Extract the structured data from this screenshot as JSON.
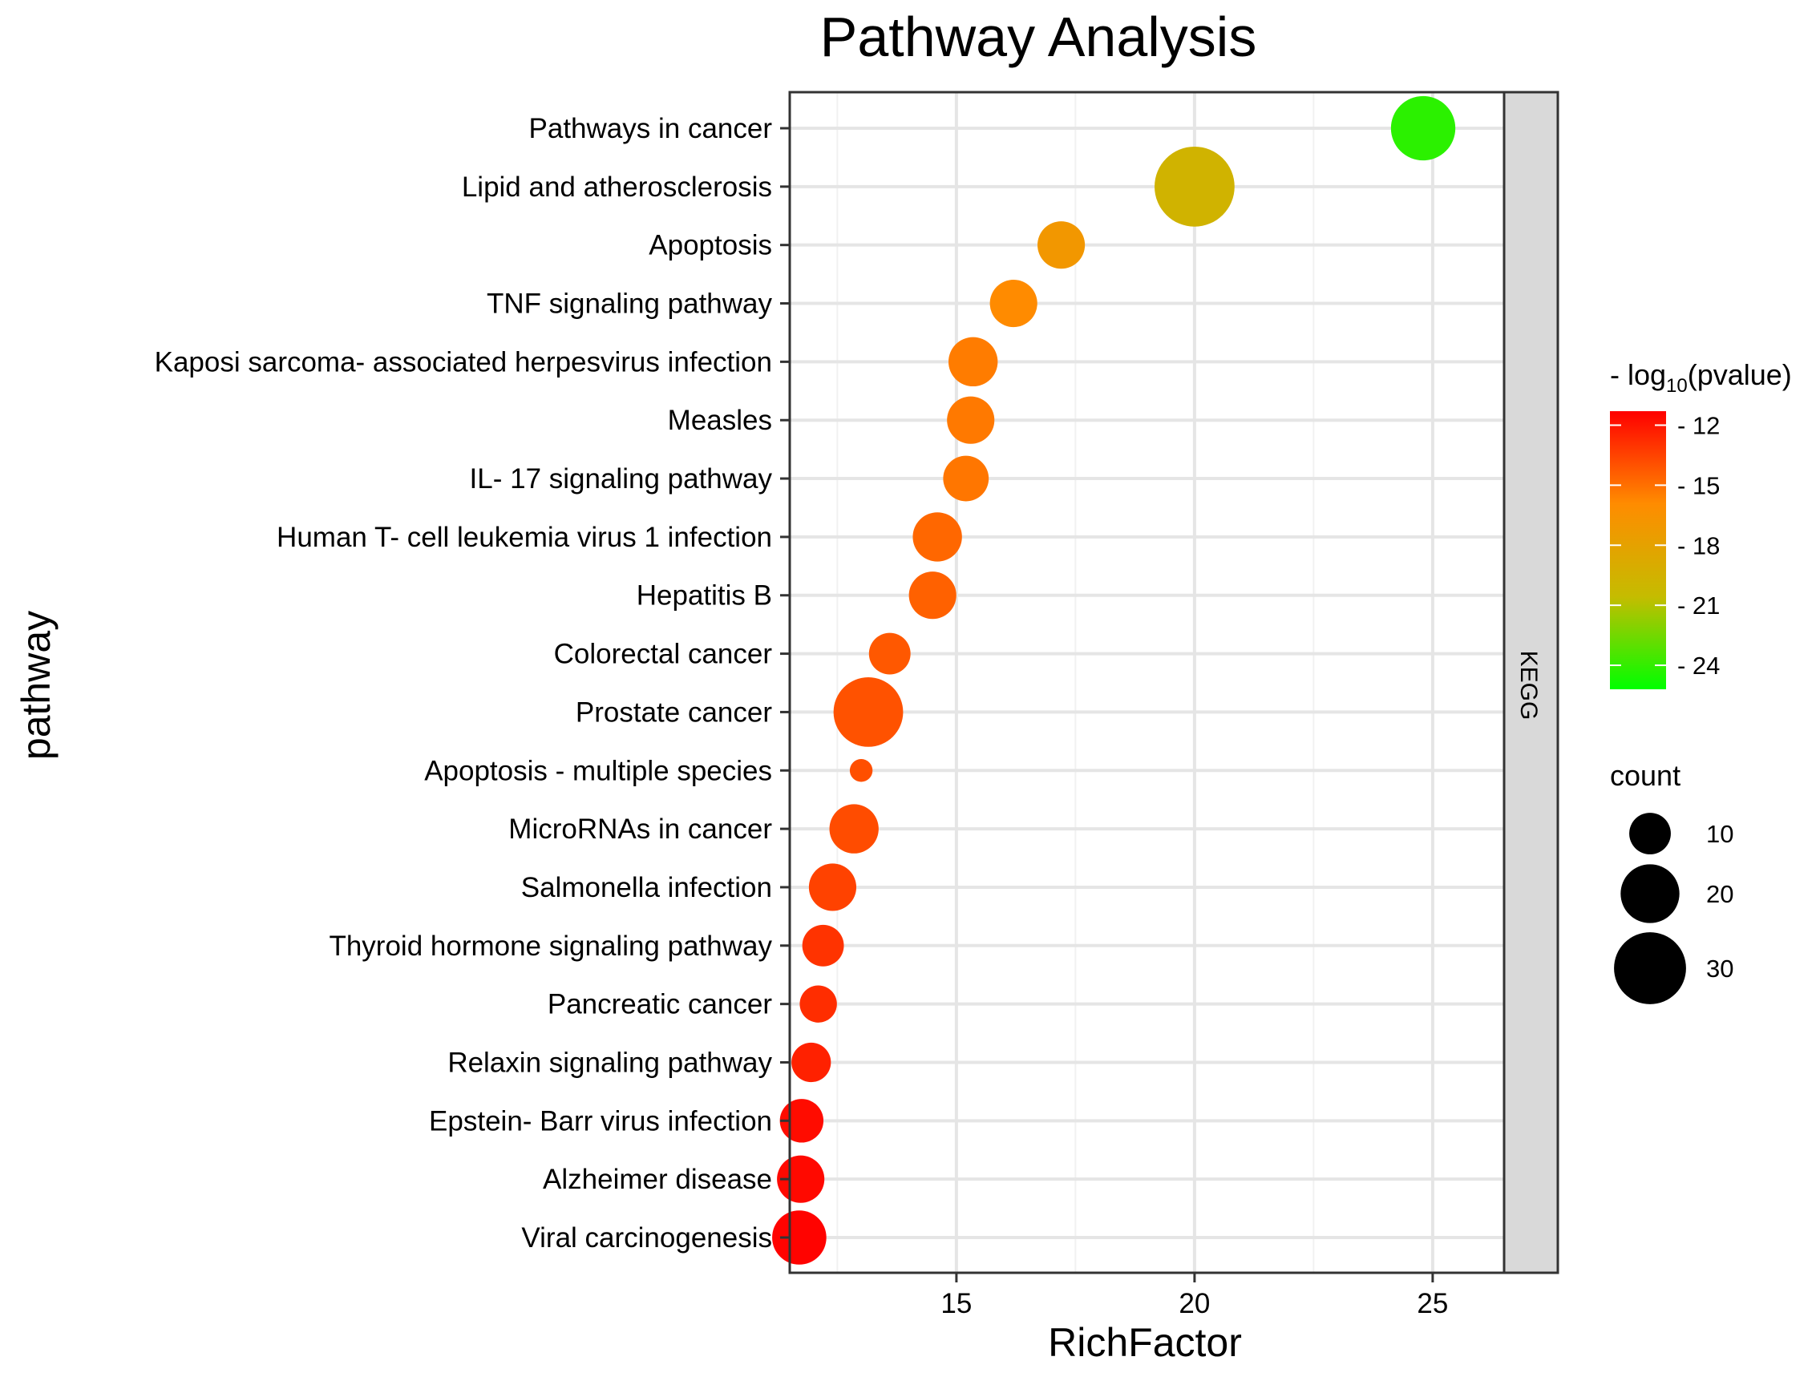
{
  "chart_data": {
    "type": "scatter",
    "title": "Pathway Analysis",
    "xlabel": "RichFactor",
    "ylabel": "pathway",
    "xlim": [
      11.5,
      26.5
    ],
    "x_ticks": [
      15,
      20,
      25
    ],
    "facet_label": "KEGG",
    "grid": true,
    "legend_position": "right",
    "points": [
      {
        "pathway": "Pathways in cancer",
        "richfactor": 24.8,
        "count": 24,
        "neglog10p": -24.2
      },
      {
        "pathway": "Lipid and atherosclerosis",
        "richfactor": 20.0,
        "count": 37,
        "neglog10p": -19.7
      },
      {
        "pathway": "Apoptosis",
        "richfactor": 17.2,
        "count": 13,
        "neglog10p": -17.0
      },
      {
        "pathway": "TNF signaling pathway",
        "richfactor": 16.2,
        "count": 13,
        "neglog10p": -15.9
      },
      {
        "pathway": "Kaposi sarcoma- associated herpesvirus infection",
        "richfactor": 15.35,
        "count": 14,
        "neglog10p": -15.4
      },
      {
        "pathway": "Measles",
        "richfactor": 15.3,
        "count": 13,
        "neglog10p": -15.3
      },
      {
        "pathway": "IL- 17 signaling pathway",
        "richfactor": 15.2,
        "count": 12,
        "neglog10p": -15.2
      },
      {
        "pathway": "Human T- cell leukemia virus 1 infection",
        "richfactor": 14.6,
        "count": 14,
        "neglog10p": -14.7
      },
      {
        "pathway": "Hepatitis B",
        "richfactor": 14.5,
        "count": 13,
        "neglog10p": -14.5
      },
      {
        "pathway": "Colorectal cancer",
        "richfactor": 13.6,
        "count": 10,
        "neglog10p": -14.2
      },
      {
        "pathway": "Prostate cancer",
        "richfactor": 13.15,
        "count": 28,
        "neglog10p": -14.0
      },
      {
        "pathway": "Apoptosis - multiple species",
        "richfactor": 13.0,
        "count": 3,
        "neglog10p": -13.9
      },
      {
        "pathway": "MicroRNAs in cancer",
        "richfactor": 12.85,
        "count": 14,
        "neglog10p": -13.8
      },
      {
        "pathway": "Salmonella infection",
        "richfactor": 12.4,
        "count": 13,
        "neglog10p": -13.5
      },
      {
        "pathway": "Thyroid hormone signaling pathway",
        "richfactor": 12.2,
        "count": 10,
        "neglog10p": -13.0
      },
      {
        "pathway": "Pancreatic cancer",
        "richfactor": 12.1,
        "count": 8,
        "neglog10p": -12.8
      },
      {
        "pathway": "Relaxin signaling pathway",
        "richfactor": 11.95,
        "count": 9,
        "neglog10p": -12.4
      },
      {
        "pathway": "Epstein- Barr virus infection",
        "richfactor": 11.75,
        "count": 11,
        "neglog10p": -11.7
      },
      {
        "pathway": "Alzheimer disease",
        "richfactor": 11.73,
        "count": 13,
        "neglog10p": -11.6
      },
      {
        "pathway": "Viral carcinogenesis",
        "richfactor": 11.7,
        "count": 17,
        "neglog10p": -11.4
      }
    ],
    "color_legend": {
      "title_prefix": "- log",
      "title_sub": "10",
      "title_suffix": "(pvalue)",
      "domain": [
        -25.2,
        -11.3
      ],
      "ticks": [
        -12,
        -15,
        -18,
        -21,
        -24
      ],
      "tick_labels": [
        "- 12",
        "- 15",
        "- 18",
        "- 21",
        "- 24"
      ],
      "colors": [
        "#ff0000",
        "#ff8c00",
        "#c5bc00",
        "#00ff00"
      ]
    },
    "size_legend": {
      "title": "count",
      "values": [
        10,
        20,
        30
      ],
      "labels": [
        "10",
        "20",
        "30"
      ]
    }
  }
}
